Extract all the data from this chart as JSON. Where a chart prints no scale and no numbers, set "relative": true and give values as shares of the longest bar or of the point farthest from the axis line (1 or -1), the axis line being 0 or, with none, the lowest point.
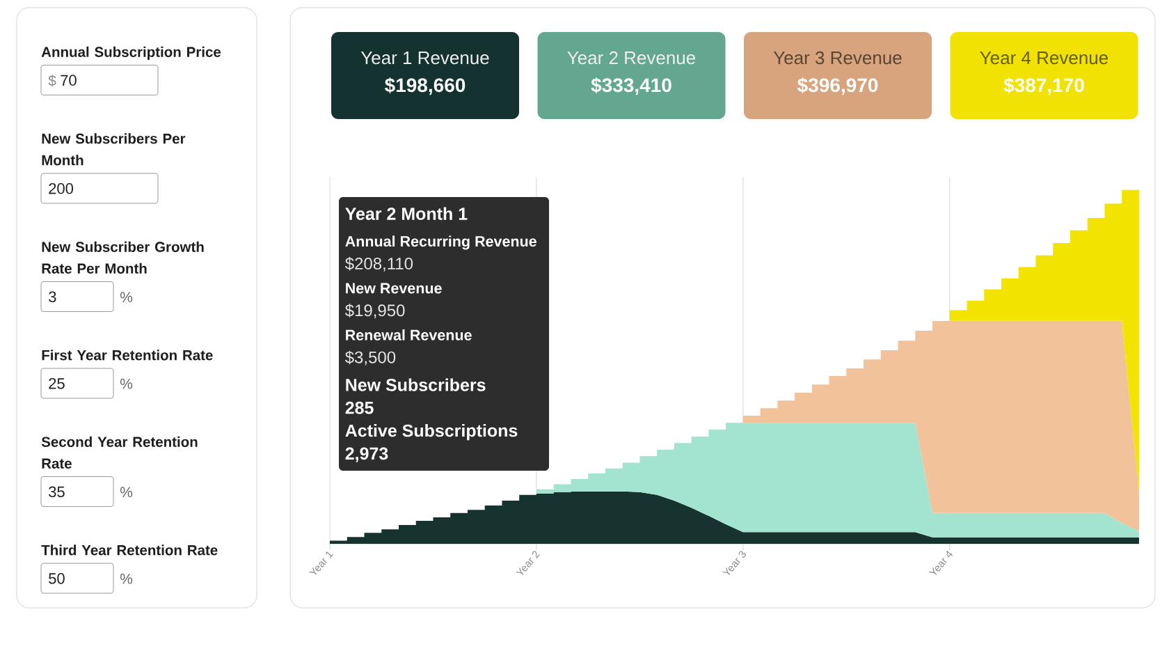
{
  "chart_data": [
    {
      "type": "other",
      "categories": [
        "Annual Subscription Price",
        "New Subscribers Per Month",
        "New Subscriber Growth Rate Per Month",
        "First Year Retention Rate",
        "Second Year Retention Rate",
        "Third Year Retention Rate"
      ],
      "values": [
        70,
        200,
        3,
        25,
        35,
        50
      ],
      "data_labels": true,
      "annotations": [
        "$",
        "%",
        "%",
        "%",
        "%"
      ]
    },
    {
      "type": "other",
      "categories": [
        "Year 1 Revenue",
        "Year 2 Revenue",
        "Year 3 Revenue",
        "Year 4 Revenue"
      ],
      "value_labels": [
        "$198,660",
        "$333,410",
        "$396,970",
        "$387,170"
      ],
      "colors": [
        "#143330",
        "#64a791",
        "#d8a47e",
        "#f2e204"
      ]
    },
    {
      "type": "area",
      "stacked": true,
      "relative": true,
      "grid": "x",
      "categories": [
        "Year 1",
        null,
        null,
        null,
        null,
        null,
        null,
        null,
        null,
        null,
        null,
        null,
        "Year 2",
        null,
        null,
        null,
        null,
        null,
        null,
        null,
        null,
        null,
        null,
        null,
        "Year 3",
        null,
        null,
        null,
        null,
        null,
        null,
        null,
        null,
        null,
        null,
        null,
        "Year 4",
        null,
        null,
        null,
        null,
        null,
        null,
        null,
        null,
        null,
        null,
        null
      ],
      "series": [
        {
          "color": "#17332f",
          "values": [
            0.009,
            0.019,
            0.031,
            0.041,
            0.053,
            0.065,
            0.075,
            0.087,
            0.096,
            0.108,
            0.122,
            0.138,
            0.142,
            0.146,
            0.148,
            0.148,
            0.148,
            0.148,
            0.146,
            0.138,
            0.122,
            0.102,
            0.079,
            0.055,
            0.033,
            0.033,
            0.033,
            0.033,
            0.033,
            0.033,
            0.033,
            0.033,
            0.033,
            0.033,
            0.033,
            0.018,
            0.018,
            0.018,
            0.018,
            0.018,
            0.018,
            0.018,
            0.018,
            0.018,
            0.018,
            0.018,
            0.018,
            0.018
          ]
        },
        {
          "color": "#a3e4d1",
          "values": [
            null,
            null,
            null,
            null,
            null,
            null,
            null,
            null,
            null,
            null,
            null,
            null,
            0.012,
            0.022,
            0.035,
            0.051,
            0.065,
            0.081,
            0.102,
            0.128,
            0.163,
            0.201,
            0.244,
            0.287,
            0.309,
            0.309,
            0.309,
            0.309,
            0.309,
            0.309,
            0.309,
            0.309,
            0.309,
            0.309,
            0.309,
            0.069,
            0.069,
            0.069,
            0.069,
            0.069,
            0.069,
            0.069,
            0.069,
            0.069,
            0.069,
            0.069,
            0.041,
            0.018
          ]
        },
        {
          "color": "#f2c29a",
          "values": [
            null,
            null,
            null,
            null,
            null,
            null,
            null,
            null,
            null,
            null,
            null,
            null,
            null,
            null,
            null,
            null,
            null,
            null,
            null,
            null,
            null,
            null,
            null,
            null,
            0.02,
            0.041,
            0.063,
            0.085,
            0.108,
            0.132,
            0.154,
            0.179,
            0.205,
            0.232,
            0.26,
            0.543,
            0.543,
            0.543,
            0.543,
            0.543,
            0.543,
            0.543,
            0.543,
            0.543,
            0.543,
            0.543,
            0.571,
            0.112
          ]
        },
        {
          "color": "#f3e300",
          "values": [
            null,
            null,
            null,
            null,
            null,
            null,
            null,
            null,
            null,
            null,
            null,
            null,
            null,
            null,
            null,
            null,
            null,
            null,
            null,
            null,
            null,
            null,
            null,
            null,
            null,
            null,
            null,
            null,
            null,
            null,
            null,
            null,
            null,
            null,
            null,
            null,
            0.03,
            0.057,
            0.089,
            0.12,
            0.152,
            0.185,
            0.22,
            0.256,
            0.291,
            0.331,
            0.37,
            0.852
          ]
        }
      ],
      "annotations": [
        "Year 2 Month 1",
        "Annual Recurring Revenue",
        "$208,110",
        "New Revenue",
        "$19,950",
        "Renewal Revenue",
        "$3,500",
        "New Subscribers",
        "285",
        "Active Subscriptions",
        "2,973"
      ]
    }
  ]
}
